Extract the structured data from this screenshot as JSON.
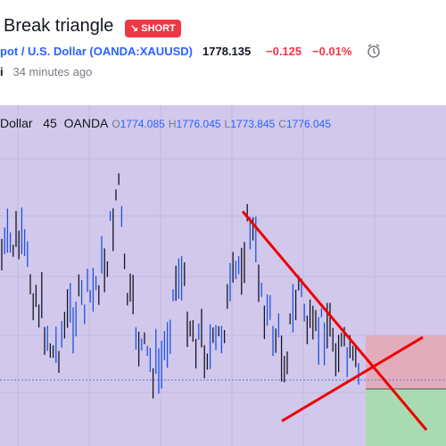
{
  "header": {
    "title": "Break triangle",
    "badge": "SHORT",
    "symbol_name": "pot / U.S. Dollar",
    "symbol_code": "(OANDA:XAUUSD)",
    "price": "1778.135",
    "change": "−0.125",
    "change_percent": "−0.01%",
    "author": "i",
    "time": "34 minutes ago"
  },
  "legend": {
    "symbol": "Dollar",
    "interval": "45",
    "exchange": "OANDA",
    "items": [
      {
        "label": "O",
        "value": "1774.085"
      },
      {
        "label": "H",
        "value": "1776.045"
      },
      {
        "label": "L",
        "value": "1773.845"
      },
      {
        "label": "C",
        "value": "1776.045"
      }
    ]
  }
}
